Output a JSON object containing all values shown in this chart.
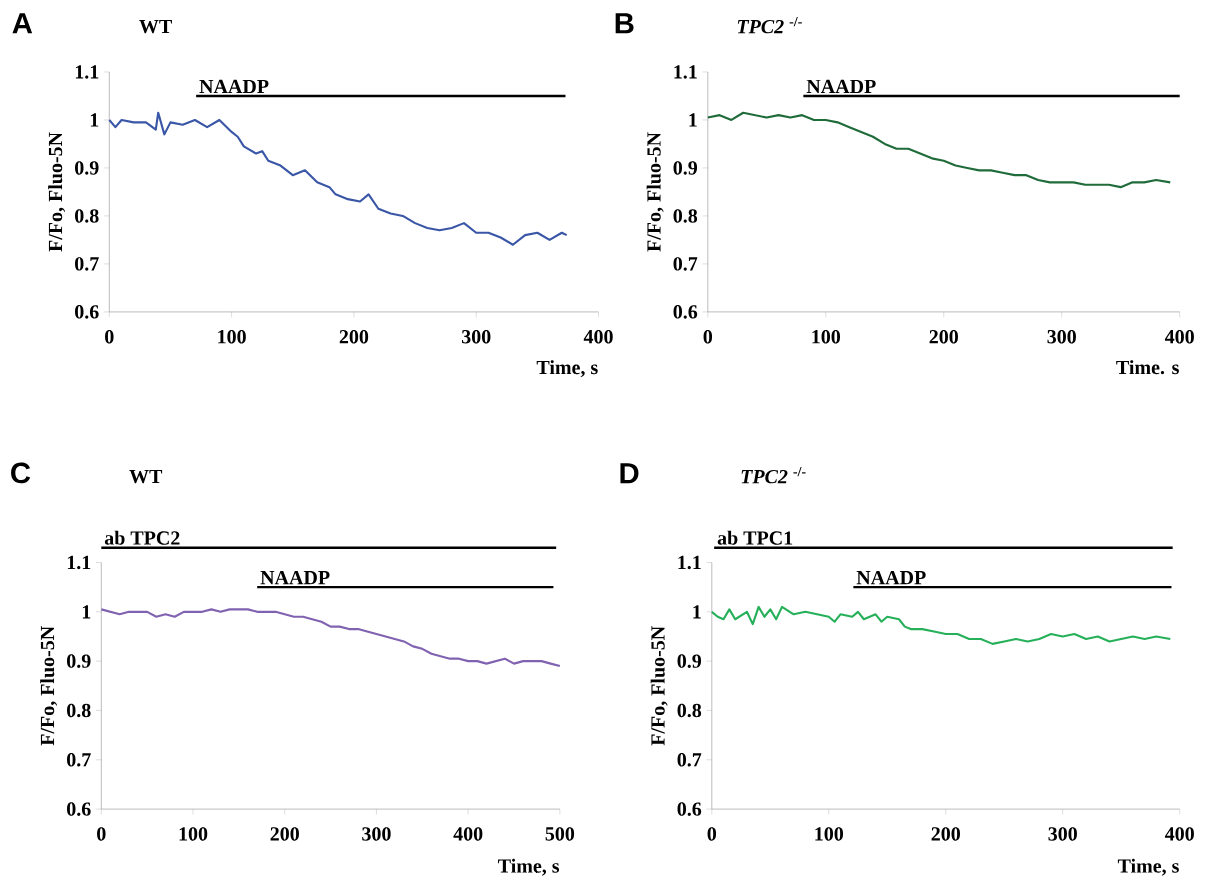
{
  "chart_data": [
    {
      "type": "line",
      "title": "WT",
      "annotations": [
        "A",
        "NAADP"
      ],
      "xlabel": "Time, s",
      "ylabel": "F/Fo, Fluo-5N",
      "color": "#3a56a6",
      "x": [
        0,
        5,
        10,
        20,
        30,
        38,
        40,
        45,
        50,
        60,
        70,
        80,
        90,
        100,
        105,
        110,
        120,
        125,
        130,
        140,
        150,
        160,
        170,
        180,
        185,
        195,
        205,
        212,
        220,
        230,
        240,
        250,
        260,
        270,
        280,
        290,
        300,
        310,
        320,
        330,
        340,
        350,
        360,
        370,
        374
      ],
      "values": [
        1.0,
        0.985,
        1.0,
        0.995,
        0.995,
        0.98,
        1.015,
        0.97,
        0.995,
        0.99,
        1.0,
        0.985,
        1.0,
        0.975,
        0.965,
        0.945,
        0.93,
        0.935,
        0.915,
        0.905,
        0.885,
        0.895,
        0.87,
        0.86,
        0.845,
        0.835,
        0.83,
        0.845,
        0.815,
        0.805,
        0.8,
        0.785,
        0.775,
        0.77,
        0.775,
        0.785,
        0.765,
        0.765,
        0.755,
        0.74,
        0.76,
        0.765,
        0.75,
        0.765,
        0.76
      ],
      "xlim": [
        0,
        400
      ],
      "xticks": [
        0,
        100,
        200,
        300,
        400
      ],
      "ylim": [
        0.6,
        1.1
      ],
      "yticks": [
        0.6,
        0.7,
        0.8,
        0.9,
        1,
        1.1
      ]
    },
    {
      "type": "line",
      "title": "*TPC2* $^{-/-}$",
      "annotations": [
        "B",
        "NAADP"
      ],
      "xlabel": "Time. s",
      "ylabel": "F/Fo, Fluo-5N",
      "color": "#1f6b3a",
      "x": [
        0,
        10,
        20,
        30,
        40,
        50,
        60,
        70,
        80,
        90,
        100,
        110,
        120,
        130,
        140,
        150,
        160,
        170,
        180,
        190,
        200,
        210,
        220,
        230,
        240,
        250,
        260,
        270,
        280,
        290,
        300,
        310,
        320,
        330,
        340,
        350,
        360,
        370,
        380,
        392
      ],
      "values": [
        1.005,
        1.01,
        1.0,
        1.015,
        1.01,
        1.005,
        1.01,
        1.005,
        1.01,
        1.0,
        1.0,
        0.995,
        0.985,
        0.975,
        0.965,
        0.95,
        0.94,
        0.94,
        0.93,
        0.92,
        0.915,
        0.905,
        0.9,
        0.895,
        0.895,
        0.89,
        0.885,
        0.885,
        0.875,
        0.87,
        0.87,
        0.87,
        0.865,
        0.865,
        0.865,
        0.86,
        0.87,
        0.87,
        0.875,
        0.87
      ],
      "xlim": [
        0,
        400
      ],
      "xticks": [
        0,
        100,
        200,
        300,
        400
      ],
      "ylim": [
        0.6,
        1.1
      ],
      "yticks": [
        0.6,
        0.7,
        0.8,
        0.9,
        1,
        1.1
      ]
    },
    {
      "type": "line",
      "title": "WT",
      "annotations": [
        "C",
        "ab TPC2",
        "NAADP"
      ],
      "xlabel": "Time, s",
      "ylabel": "F/Fo, Fluo-5N",
      "color": "#8062b0",
      "x": [
        0,
        10,
        20,
        30,
        40,
        50,
        60,
        70,
        80,
        90,
        100,
        110,
        120,
        130,
        140,
        150,
        160,
        170,
        180,
        190,
        200,
        210,
        220,
        230,
        240,
        250,
        260,
        270,
        280,
        290,
        300,
        310,
        320,
        330,
        340,
        350,
        360,
        370,
        380,
        390,
        400,
        410,
        420,
        430,
        440,
        450,
        460,
        470,
        480,
        490,
        500
      ],
      "values": [
        1.005,
        1.0,
        0.995,
        1.0,
        1.0,
        1.0,
        0.99,
        0.995,
        0.99,
        1.0,
        1.0,
        1.0,
        1.005,
        1.0,
        1.005,
        1.005,
        1.005,
        1.0,
        1.0,
        1.0,
        0.995,
        0.99,
        0.99,
        0.985,
        0.98,
        0.97,
        0.97,
        0.965,
        0.965,
        0.96,
        0.955,
        0.95,
        0.945,
        0.94,
        0.93,
        0.925,
        0.915,
        0.91,
        0.905,
        0.905,
        0.9,
        0.9,
        0.895,
        0.9,
        0.905,
        0.895,
        0.9,
        0.9,
        0.9,
        0.895,
        0.89
      ],
      "xlim": [
        0,
        500
      ],
      "xticks": [
        0,
        100,
        200,
        300,
        400,
        500
      ],
      "ylim": [
        0.6,
        1.1
      ],
      "yticks": [
        0.6,
        0.7,
        0.8,
        0.9,
        1,
        1.1
      ]
    },
    {
      "type": "line",
      "title": "*TPC2* $^{-/-}$",
      "annotations": [
        "D",
        "ab TPC1",
        "NAADP"
      ],
      "xlabel": "Time, s",
      "ylabel": "F/Fo, Fluo-5N",
      "color": "#27b05a",
      "x": [
        0,
        5,
        10,
        15,
        20,
        30,
        35,
        40,
        45,
        50,
        55,
        60,
        70,
        80,
        90,
        100,
        105,
        110,
        120,
        125,
        130,
        140,
        145,
        150,
        160,
        165,
        170,
        180,
        190,
        200,
        210,
        220,
        230,
        240,
        250,
        260,
        270,
        280,
        290,
        300,
        310,
        320,
        330,
        340,
        350,
        360,
        370,
        380,
        392
      ],
      "values": [
        1.0,
        0.99,
        0.985,
        1.005,
        0.985,
        1.0,
        0.975,
        1.01,
        0.99,
        1.005,
        0.985,
        1.01,
        0.995,
        1.0,
        0.995,
        0.99,
        0.98,
        0.995,
        0.99,
        1.0,
        0.985,
        0.995,
        0.98,
        0.99,
        0.985,
        0.97,
        0.965,
        0.965,
        0.96,
        0.955,
        0.955,
        0.945,
        0.945,
        0.935,
        0.94,
        0.945,
        0.94,
        0.945,
        0.955,
        0.95,
        0.955,
        0.945,
        0.95,
        0.94,
        0.945,
        0.95,
        0.945,
        0.95,
        0.945
      ],
      "xlim": [
        0,
        400
      ],
      "xticks": [
        0,
        100,
        200,
        300,
        400
      ],
      "ylim": [
        0.6,
        1.1
      ],
      "yticks": [
        0.6,
        0.7,
        0.8,
        0.9,
        1,
        1.1
      ]
    }
  ]
}
